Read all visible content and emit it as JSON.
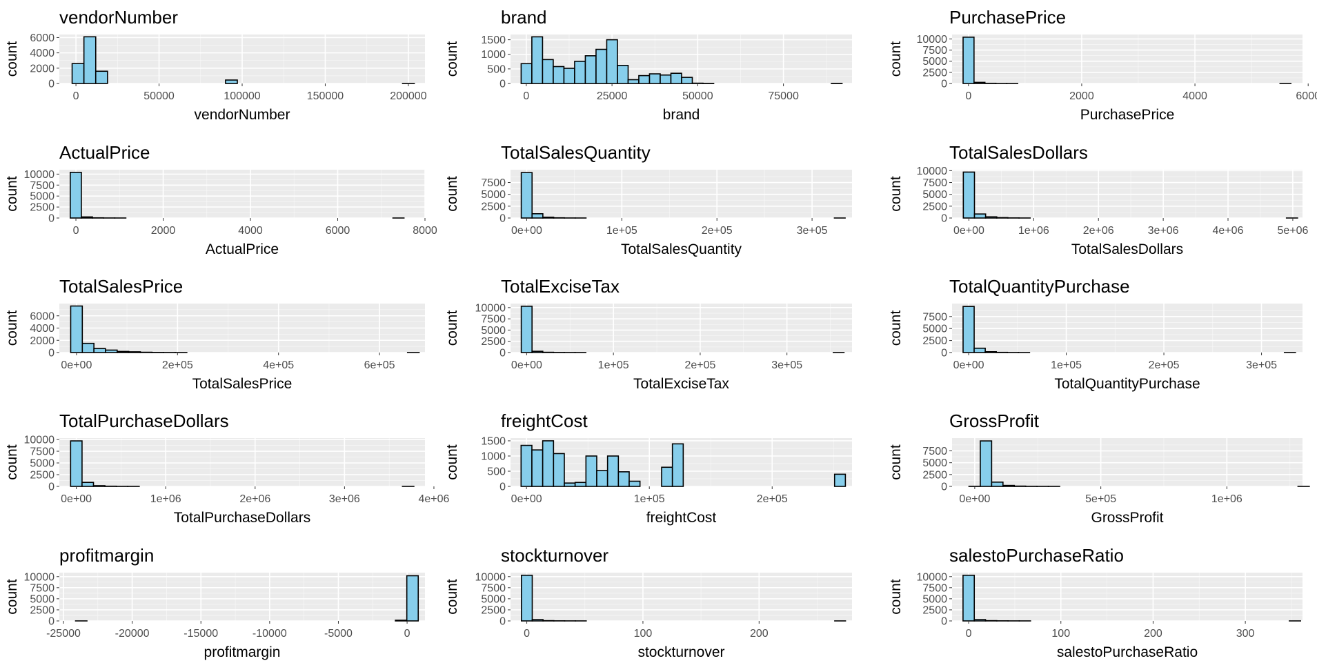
{
  "style": {
    "panel_bg": "#EBEBEB",
    "grid_major": "#FFFFFF",
    "bar_fill": "#87CEEB",
    "bar_stroke": "#000000",
    "tick_text": "#4D4D4D"
  },
  "chart_data": [
    {
      "type": "bar",
      "title": "vendorNumber",
      "xlabel": "vendorNumber",
      "ylabel": "count",
      "xlim": [
        -10000,
        210000
      ],
      "ylim": [
        0,
        6400
      ],
      "xticks": [
        0,
        50000,
        100000,
        150000,
        200000
      ],
      "xtick_labels": [
        "0",
        "50000",
        "100000",
        "150000",
        "200000"
      ],
      "yticks": [
        0,
        2000,
        4000,
        6000
      ],
      "ytick_labels": [
        "0",
        "2000",
        "4000",
        "6000"
      ],
      "bin_start": -2300,
      "bin_width": 7100,
      "counts": [
        2600,
        6100,
        1600,
        0,
        0,
        0,
        0,
        0,
        0,
        0,
        0,
        0,
        0,
        450,
        0,
        0,
        0,
        0,
        0,
        0,
        0,
        0,
        0,
        0,
        0,
        0,
        0,
        0,
        5,
        0
      ]
    },
    {
      "type": "bar",
      "title": "brand",
      "xlabel": "brand",
      "ylabel": "count",
      "xlim": [
        -4600,
        95000
      ],
      "ylim": [
        0,
        1680
      ],
      "xticks": [
        0,
        25000,
        50000,
        75000
      ],
      "xtick_labels": [
        "0",
        "25000",
        "50000",
        "75000"
      ],
      "yticks": [
        0,
        500,
        1000,
        1500
      ],
      "ytick_labels": [
        "0",
        "500",
        "1000",
        "1500"
      ],
      "bin_start": -1500,
      "bin_width": 3120,
      "counts": [
        680,
        1600,
        820,
        580,
        520,
        760,
        950,
        1170,
        1500,
        620,
        130,
        270,
        330,
        290,
        350,
        210,
        10,
        5,
        0,
        0,
        0,
        0,
        0,
        0,
        0,
        0,
        0,
        0,
        0,
        5
      ]
    },
    {
      "type": "bar",
      "title": "PurchasePrice",
      "xlabel": "PurchasePrice",
      "ylabel": "count",
      "xlim": [
        -290,
        5900
      ],
      "ylim": [
        0,
        11000
      ],
      "xticks": [
        0,
        2000,
        4000,
        6000
      ],
      "xtick_labels": [
        "0",
        "2000",
        "4000",
        "6000"
      ],
      "yticks": [
        0,
        2500,
        5000,
        7500,
        10000
      ],
      "ytick_labels": [
        "0",
        "2500",
        "5000",
        "7500",
        "10000"
      ],
      "bin_start": -95,
      "bin_width": 193,
      "counts": [
        10400,
        250,
        40,
        10,
        5,
        0,
        0,
        0,
        0,
        0,
        0,
        0,
        0,
        0,
        0,
        0,
        0,
        0,
        0,
        0,
        0,
        0,
        0,
        0,
        0,
        0,
        0,
        0,
        0,
        2
      ]
    },
    {
      "type": "bar",
      "title": "ActualPrice",
      "xlabel": "ActualPrice",
      "ylabel": "count",
      "xlim": [
        -380,
        8000
      ],
      "ylim": [
        0,
        11000
      ],
      "xticks": [
        0,
        2000,
        4000,
        6000,
        8000
      ],
      "xtick_labels": [
        "0",
        "2000",
        "4000",
        "6000",
        "8000"
      ],
      "yticks": [
        0,
        2500,
        5000,
        7500,
        10000
      ],
      "ytick_labels": [
        "0",
        "2500",
        "5000",
        "7500",
        "10000"
      ],
      "bin_start": -130,
      "bin_width": 255,
      "counts": [
        10400,
        250,
        40,
        10,
        5,
        0,
        0,
        0,
        0,
        0,
        0,
        0,
        0,
        0,
        0,
        0,
        0,
        0,
        0,
        0,
        0,
        0,
        0,
        0,
        0,
        0,
        0,
        0,
        0,
        2
      ]
    },
    {
      "type": "bar",
      "title": "TotalSalesQuantity",
      "xlabel": "TotalSalesQuantity",
      "ylabel": "count",
      "xlim": [
        -17000,
        342000
      ],
      "ylim": [
        0,
        10200
      ],
      "xticks": [
        0,
        100000,
        200000,
        300000
      ],
      "xtick_labels": [
        "0e+00",
        "1e+05",
        "2e+05",
        "3e+05"
      ],
      "yticks": [
        0,
        2500,
        5000,
        7500
      ],
      "ytick_labels": [
        "0",
        "2500",
        "5000",
        "7500"
      ],
      "bin_start": -5700,
      "bin_width": 11350,
      "counts": [
        9600,
        900,
        170,
        40,
        10,
        5,
        0,
        0,
        0,
        0,
        0,
        0,
        0,
        0,
        0,
        0,
        0,
        0,
        0,
        0,
        0,
        0,
        0,
        0,
        0,
        0,
        0,
        0,
        0,
        2
      ]
    },
    {
      "type": "bar",
      "title": "TotalSalesDollars",
      "xlabel": "TotalSalesDollars",
      "ylabel": "count",
      "xlim": [
        -260000,
        5150000
      ],
      "ylim": [
        0,
        10200
      ],
      "xticks": [
        0,
        1000000,
        2000000,
        3000000,
        4000000,
        5000000
      ],
      "xtick_labels": [
        "0e+00",
        "1e+06",
        "2e+06",
        "3e+06",
        "4e+06",
        "5e+06"
      ],
      "yticks": [
        0,
        2500,
        5000,
        7500,
        10000
      ],
      "ytick_labels": [
        "0",
        "2500",
        "5000",
        "7500",
        "10000"
      ],
      "bin_start": -86000,
      "bin_width": 172000,
      "counts": [
        9700,
        850,
        250,
        80,
        20,
        5,
        0,
        0,
        0,
        0,
        0,
        0,
        0,
        0,
        0,
        0,
        0,
        0,
        0,
        0,
        0,
        0,
        0,
        0,
        0,
        0,
        0,
        0,
        0,
        2
      ]
    },
    {
      "type": "bar",
      "title": "TotalSalesPrice",
      "xlabel": "TotalSalesPrice",
      "ylabel": "count",
      "xlim": [
        -34000,
        690000
      ],
      "ylim": [
        0,
        8000
      ],
      "xticks": [
        0,
        200000,
        400000,
        600000
      ],
      "xtick_labels": [
        "0e+00",
        "2e+05",
        "4e+05",
        "6e+05"
      ],
      "yticks": [
        0,
        2000,
        4000,
        6000
      ],
      "ytick_labels": [
        "0",
        "2000",
        "4000",
        "6000"
      ],
      "bin_start": -11500,
      "bin_width": 23000,
      "counts": [
        7600,
        1500,
        650,
        400,
        180,
        120,
        50,
        20,
        10,
        5,
        0,
        0,
        0,
        0,
        0,
        0,
        0,
        0,
        0,
        0,
        0,
        0,
        0,
        0,
        0,
        0,
        0,
        0,
        0,
        2
      ]
    },
    {
      "type": "bar",
      "title": "TotalExciseTax",
      "xlabel": "TotalExciseTax",
      "ylabel": "count",
      "xlim": [
        -18600,
        375000
      ],
      "ylim": [
        0,
        10900
      ],
      "xticks": [
        0,
        100000,
        200000,
        300000
      ],
      "xtick_labels": [
        "0e+00",
        "1e+05",
        "2e+05",
        "3e+05"
      ],
      "yticks": [
        0,
        2500,
        5000,
        7500,
        10000
      ],
      "ytick_labels": [
        "0",
        "2500",
        "5000",
        "7500",
        "10000"
      ],
      "bin_start": -6200,
      "bin_width": 12400,
      "counts": [
        10300,
        280,
        60,
        20,
        10,
        5,
        0,
        0,
        0,
        0,
        0,
        0,
        0,
        0,
        0,
        0,
        0,
        0,
        0,
        0,
        0,
        0,
        0,
        0,
        0,
        0,
        0,
        0,
        0,
        2
      ]
    },
    {
      "type": "bar",
      "title": "TotalQuantityPurchase",
      "xlabel": "TotalQuantityPurchase",
      "ylabel": "count",
      "xlim": [
        -17000,
        342000
      ],
      "ylim": [
        0,
        10200
      ],
      "xticks": [
        0,
        100000,
        200000,
        300000
      ],
      "xtick_labels": [
        "0e+00",
        "1e+05",
        "2e+05",
        "3e+05"
      ],
      "yticks": [
        0,
        2500,
        5000,
        7500
      ],
      "ytick_labels": [
        "0",
        "2500",
        "5000",
        "7500"
      ],
      "bin_start": -5700,
      "bin_width": 11350,
      "counts": [
        9600,
        900,
        170,
        40,
        10,
        5,
        0,
        0,
        0,
        0,
        0,
        0,
        0,
        0,
        0,
        0,
        0,
        0,
        0,
        0,
        0,
        0,
        0,
        0,
        0,
        0,
        0,
        0,
        0,
        2
      ]
    },
    {
      "type": "bar",
      "title": "TotalPurchaseDollars",
      "xlabel": "TotalPurchaseDollars",
      "ylabel": "count",
      "xlim": [
        -190000,
        3900000
      ],
      "ylim": [
        0,
        10300
      ],
      "xticks": [
        0,
        1000000,
        2000000,
        3000000,
        4000000
      ],
      "xtick_labels": [
        "0e+00",
        "1e+06",
        "2e+06",
        "3e+06",
        "4e+06"
      ],
      "yticks": [
        0,
        2500,
        5000,
        7500,
        10000
      ],
      "ytick_labels": [
        "0",
        "2500",
        "5000",
        "7500",
        "10000"
      ],
      "bin_start": -64000,
      "bin_width": 128000,
      "counts": [
        9700,
        850,
        150,
        40,
        10,
        5,
        0,
        0,
        0,
        0,
        0,
        0,
        0,
        0,
        0,
        0,
        0,
        0,
        0,
        0,
        0,
        0,
        0,
        0,
        0,
        0,
        0,
        0,
        0,
        2
      ]
    },
    {
      "type": "bar",
      "title": "freightCost",
      "xlabel": "freightCost",
      "ylabel": "count",
      "xlim": [
        -13000,
        265000
      ],
      "ylim": [
        0,
        1590
      ],
      "xticks": [
        0,
        100000,
        200000
      ],
      "xtick_labels": [
        "0e+00",
        "1e+05",
        "2e+05"
      ],
      "yticks": [
        0,
        500,
        1000,
        1500
      ],
      "ytick_labels": [
        "0",
        "500",
        "1000",
        "1500"
      ],
      "bin_start": -4400,
      "bin_width": 8800,
      "counts": [
        1350,
        1200,
        1500,
        1080,
        110,
        130,
        1000,
        520,
        1000,
        480,
        170,
        0,
        0,
        630,
        1400,
        0,
        0,
        0,
        0,
        0,
        0,
        0,
        0,
        0,
        0,
        0,
        0,
        0,
        0,
        400
      ]
    },
    {
      "type": "bar",
      "title": "GrossProfit",
      "xlabel": "GrossProfit",
      "ylabel": "count",
      "xlim": [
        -90000,
        1300000
      ],
      "ylim": [
        0,
        10200
      ],
      "xticks": [
        0,
        500000,
        1000000
      ],
      "xtick_labels": [
        "0e+00",
        "5e+05",
        "1e+06"
      ],
      "yticks": [
        0,
        2500,
        5000,
        7500
      ],
      "ytick_labels": [
        "0",
        "2500",
        "5000",
        "7500"
      ],
      "bin_start": -23000,
      "bin_width": 45000,
      "counts": [
        20,
        9600,
        900,
        200,
        60,
        20,
        10,
        5,
        0,
        0,
        0,
        0,
        0,
        0,
        0,
        0,
        0,
        0,
        0,
        0,
        0,
        0,
        0,
        0,
        0,
        0,
        0,
        0,
        0,
        2
      ]
    },
    {
      "type": "bar",
      "title": "profitmargin",
      "xlabel": "profitmargin",
      "ylabel": "count",
      "xlim": [
        -25300,
        1300
      ],
      "ylim": [
        0,
        10900
      ],
      "xticks": [
        -25000,
        -20000,
        -15000,
        -10000,
        -5000,
        0
      ],
      "xtick_labels": [
        "-25000",
        "-20000",
        "-15000",
        "-10000",
        "-5000",
        "0"
      ],
      "yticks": [
        0,
        2500,
        5000,
        7500,
        10000
      ],
      "ytick_labels": [
        "0",
        "2500",
        "5000",
        "7500",
        "10000"
      ],
      "bin_start": -24120,
      "bin_width": 831,
      "counts": [
        2,
        0,
        0,
        0,
        0,
        0,
        0,
        0,
        0,
        0,
        0,
        0,
        0,
        0,
        0,
        0,
        0,
        0,
        0,
        0,
        0,
        0,
        0,
        0,
        0,
        0,
        0,
        0,
        150,
        10200
      ]
    },
    {
      "type": "bar",
      "title": "stockturnover",
      "xlabel": "stockturnover",
      "ylabel": "count",
      "xlim": [
        -14,
        280
      ],
      "ylim": [
        0,
        10900
      ],
      "xticks": [
        0,
        100,
        200
      ],
      "xtick_labels": [
        "0",
        "100",
        "200"
      ],
      "yticks": [
        0,
        2500,
        5000,
        7500,
        10000
      ],
      "ytick_labels": [
        "0",
        "2500",
        "5000",
        "7500",
        "10000"
      ],
      "bin_start": -4.6,
      "bin_width": 9.3,
      "counts": [
        10300,
        300,
        60,
        20,
        10,
        5,
        0,
        0,
        0,
        0,
        0,
        0,
        0,
        0,
        0,
        0,
        0,
        0,
        0,
        0,
        0,
        0,
        0,
        0,
        0,
        0,
        0,
        0,
        0,
        2
      ]
    },
    {
      "type": "bar",
      "title": "salestoPurchaseRatio",
      "xlabel": "salestoPurchaseRatio",
      "ylabel": "count",
      "xlim": [
        -18,
        362
      ],
      "ylim": [
        0,
        10900
      ],
      "xticks": [
        0,
        100,
        200,
        300
      ],
      "xtick_labels": [
        "0",
        "100",
        "200",
        "300"
      ],
      "yticks": [
        0,
        2500,
        5000,
        7500,
        10000
      ],
      "ytick_labels": [
        "0",
        "2500",
        "5000",
        "7500",
        "10000"
      ],
      "bin_start": -6.1,
      "bin_width": 12.2,
      "counts": [
        10300,
        300,
        60,
        20,
        10,
        5,
        0,
        0,
        0,
        0,
        0,
        0,
        0,
        0,
        0,
        0,
        0,
        0,
        0,
        0,
        0,
        0,
        0,
        0,
        0,
        0,
        0,
        0,
        0,
        2
      ]
    }
  ]
}
